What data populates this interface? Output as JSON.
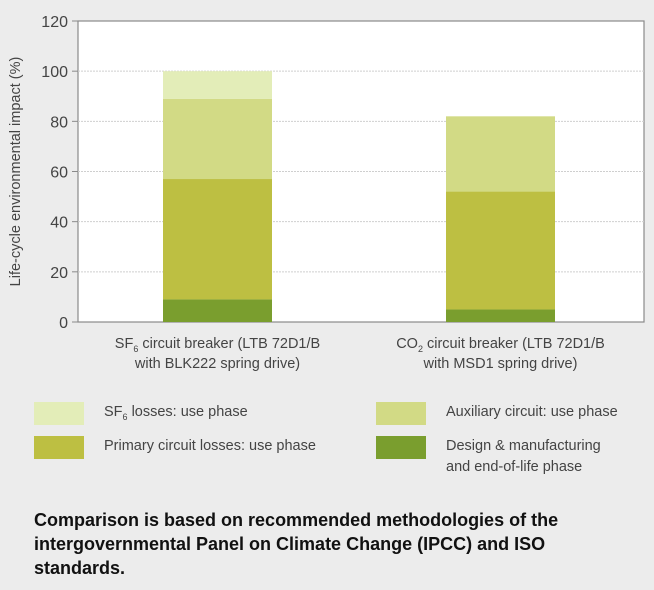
{
  "chart_data": {
    "type": "bar",
    "stacked": true,
    "title": "",
    "xlabel": "",
    "ylabel": "Life-cycle environmental impact (%)",
    "ylim": [
      0,
      120
    ],
    "yticks": [
      0,
      20,
      40,
      60,
      80,
      100,
      120
    ],
    "grid": true,
    "legend_placement": "bottom",
    "categories": [
      {
        "line1_pre": "SF",
        "line1_sub": "6",
        "line1_post": " circuit breaker (LTB 72D1/B",
        "line2": "with BLK222 spring drive)"
      },
      {
        "line1_pre": "CO",
        "line1_sub": "2",
        "line1_post": " circuit breaker (LTB 72D1/B",
        "line2": "with MSD1 spring drive)"
      }
    ],
    "series": [
      {
        "name_pre": "Design & manufacturing",
        "name_line2": "and end-of-life phase",
        "color": "#7a9e2e",
        "values": [
          9,
          5
        ]
      },
      {
        "name_pre": "Primary circuit losses: use phase",
        "color": "#bdbf42",
        "values": [
          48,
          47
        ]
      },
      {
        "name_pre": "Auxiliary circuit: use phase",
        "color": "#d2da85",
        "values": [
          32,
          30
        ]
      },
      {
        "name_pre": "SF",
        "name_sub": "6",
        "name_post": " losses: use phase",
        "color": "#e3edb8",
        "values": [
          11,
          0
        ]
      }
    ]
  },
  "footnote": "Comparison is based on recommended methodologies of the intergovernmental Panel on Climate Change (IPCC) and ISO standards."
}
